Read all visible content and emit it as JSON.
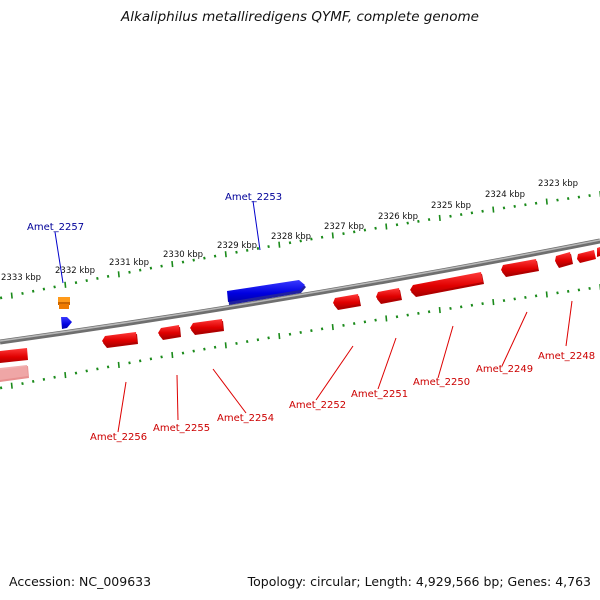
{
  "title": "Alkaliphilus metalliredigens QYMF, complete genome",
  "footer": {
    "accession": "Accession: NC_009633",
    "summary": "Topology: circular; Length: 4,929,566 bp; Genes: 4,763"
  },
  "colors": {
    "forward_strand": "#0000ee",
    "reverse_strand": "#ee0000",
    "rna_gene": "#ff8c00",
    "tick_marks": "#1a8a1a",
    "backbone": "#7a7a7a"
  },
  "scale_labels": [
    "2323 kbp",
    "2324 kbp",
    "2325 kbp",
    "2326 kbp",
    "2327 kbp",
    "2328 kbp",
    "2329 kbp",
    "2330 kbp",
    "2331 kbp",
    "2332 kbp",
    "2333 kbp"
  ],
  "forward_gene_labels": [
    "Amet_2253",
    "Amet_2257"
  ],
  "reverse_gene_labels": [
    "Amet_2248",
    "Amet_2249",
    "Amet_2250",
    "Amet_2251",
    "Amet_2252",
    "Amet_2254",
    "Amet_2255",
    "Amet_2256"
  ]
}
